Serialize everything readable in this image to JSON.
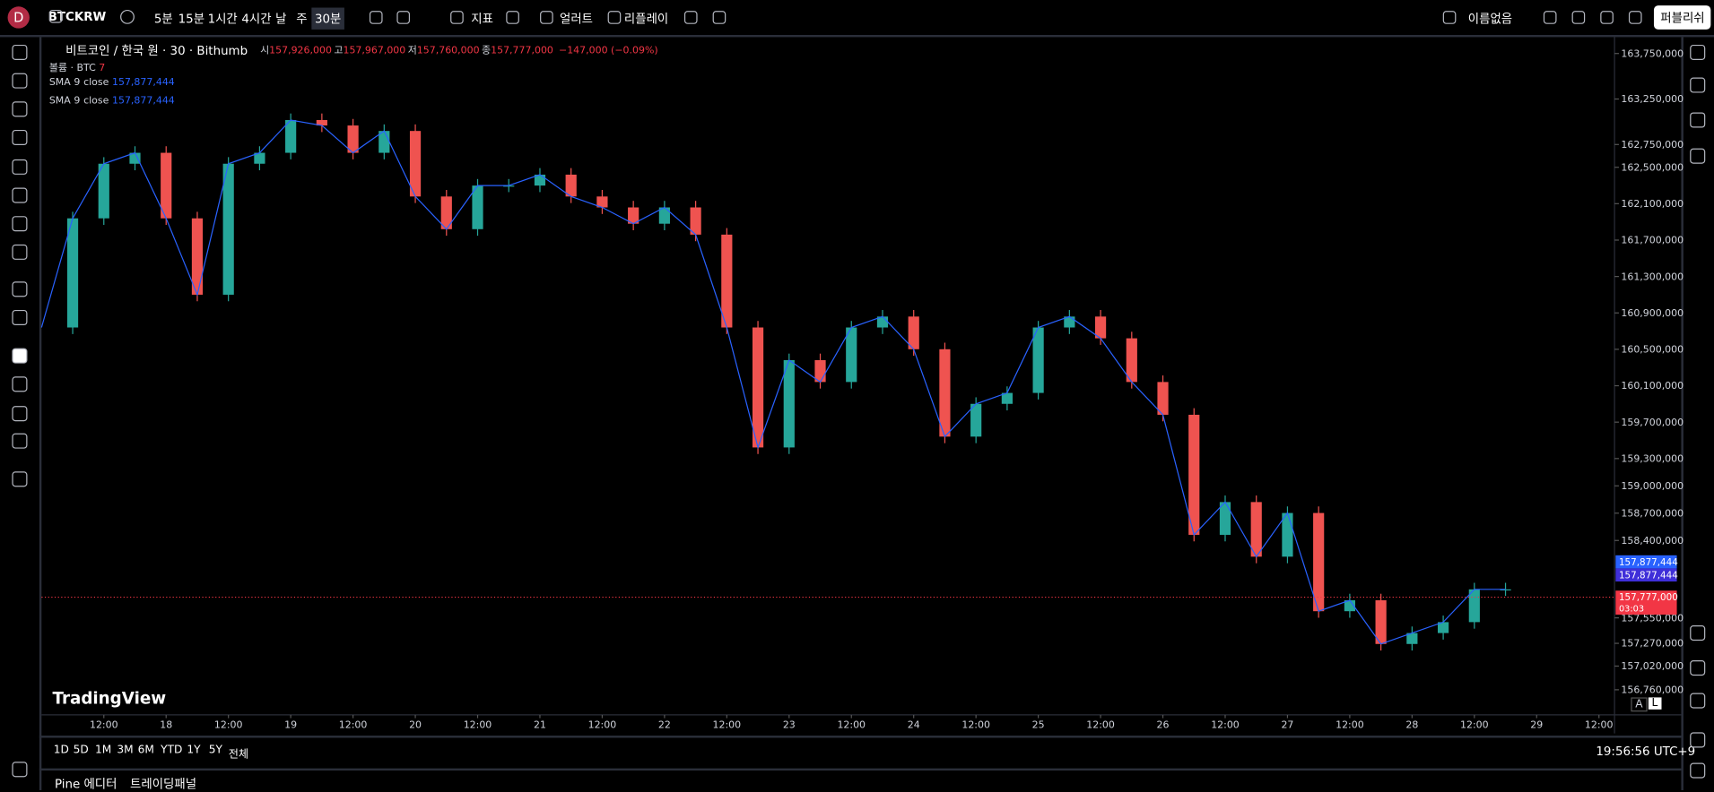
{
  "toolbar": {
    "avatar": "D",
    "symbol": "BTCKRW",
    "intervals": [
      "5분",
      "15분",
      "1시간",
      "4시간",
      "날",
      "주",
      "30분"
    ],
    "indicators": "지표",
    "alert": "얼러트",
    "replay": "리플레이",
    "layout_name": "이름없음",
    "publish": "퍼블리쉬"
  },
  "legend": {
    "title": "비트코인 / 한국 원 · 30 · Bithumb",
    "ohlc": [
      {
        "label": "시",
        "value": "157,926,000"
      },
      {
        "label": "고",
        "value": "157,967,000"
      },
      {
        "label": "저",
        "value": "157,760,000"
      },
      {
        "label": "종",
        "value": "157,777,000"
      }
    ],
    "change": "−147,000 (−0.09%)",
    "volume": "볼륨 · BTC",
    "volume_value": "7",
    "sma": [
      {
        "name": "SMA",
        "length": "9",
        "source": "close",
        "value": "157,877,444"
      },
      {
        "name": "SMA",
        "length": "9",
        "source": "close",
        "value": "157,877,444"
      }
    ]
  },
  "chart_data": {
    "type": "candlestick",
    "x": [
      0,
      6,
      12,
      18,
      24,
      30,
      36,
      42,
      48,
      54,
      60,
      66,
      72,
      78,
      84,
      90,
      96,
      102,
      108,
      114,
      120,
      126,
      132,
      138,
      144,
      150,
      156,
      162,
      168,
      174,
      180,
      186,
      192,
      198,
      204,
      210,
      216,
      222,
      228,
      234,
      240,
      246,
      252,
      258,
      264,
      270,
      276,
      282
    ],
    "values": [
      160740000,
      161939000,
      162539000,
      162659000,
      161939000,
      161100000,
      162539000,
      162659000,
      163019000,
      162959000,
      162659000,
      162899000,
      162179000,
      161820000,
      162299000,
      162299000,
      162419000,
      162179000,
      162059000,
      161880000,
      162059000,
      161760000,
      160740000,
      159422000,
      160381000,
      160141000,
      160740000,
      160860000,
      160501000,
      159541000,
      159901000,
      160021000,
      160740000,
      160860000,
      160621000,
      160141000,
      159781000,
      158462000,
      158822000,
      158222000,
      158702000,
      157623000,
      157743000,
      157263000,
      157383000,
      157503000,
      157863000,
      157863000
    ],
    "xlim": [
      0,
      303
    ],
    "ylim": [
      156484000,
      163918000
    ],
    "yticks": [
      {
        "value": 163750000,
        "label": "163,750,000"
      },
      {
        "value": 163250000,
        "label": "163,250,000"
      },
      {
        "value": 162750000,
        "label": "162,750,000"
      },
      {
        "value": 162500000,
        "label": "162,500,000"
      },
      {
        "value": 162100000,
        "label": "162,100,000"
      },
      {
        "value": 161700000,
        "label": "161,700,000"
      },
      {
        "value": 161300000,
        "label": "161,300,000"
      },
      {
        "value": 160900000,
        "label": "160,900,000"
      },
      {
        "value": 160500000,
        "label": "160,500,000"
      },
      {
        "value": 160100000,
        "label": "160,100,000"
      },
      {
        "value": 159700000,
        "label": "159,700,000"
      },
      {
        "value": 159300000,
        "label": "159,300,000"
      },
      {
        "value": 159000000,
        "label": "159,000,000"
      },
      {
        "value": 158700000,
        "label": "158,700,000"
      },
      {
        "value": 158400000,
        "label": "158,400,000"
      },
      {
        "value": 157550000,
        "label": "157,550,000"
      },
      {
        "value": 157270000,
        "label": "157,270,000"
      },
      {
        "value": 157020000,
        "label": "157,020,000"
      },
      {
        "value": 156760000,
        "label": "156,760,000"
      }
    ],
    "xticks": [
      {
        "value": 12,
        "label": "12:00"
      },
      {
        "value": 24,
        "label": "18"
      },
      {
        "value": 36,
        "label": "12:00"
      },
      {
        "value": 48,
        "label": "19"
      },
      {
        "value": 60,
        "label": "12:00"
      },
      {
        "value": 72,
        "label": "20"
      },
      {
        "value": 84,
        "label": "12:00"
      },
      {
        "value": 96,
        "label": "21"
      },
      {
        "value": 108,
        "label": "12:00"
      },
      {
        "value": 120,
        "label": "22"
      },
      {
        "value": 132,
        "label": "12:00"
      },
      {
        "value": 144,
        "label": "23"
      },
      {
        "value": 156,
        "label": "12:00"
      },
      {
        "value": 168,
        "label": "24"
      },
      {
        "value": 180,
        "label": "12:00"
      },
      {
        "value": 192,
        "label": "25"
      },
      {
        "value": 204,
        "label": "12:00"
      },
      {
        "value": 216,
        "label": "26"
      },
      {
        "value": 228,
        "label": "12:00"
      },
      {
        "value": 240,
        "label": "27"
      },
      {
        "value": 252,
        "label": "12:00"
      },
      {
        "value": 264,
        "label": "28"
      },
      {
        "value": 276,
        "label": "12:00"
      },
      {
        "value": 288,
        "label": "29"
      },
      {
        "value": 300,
        "label": "12:00"
      }
    ],
    "up_color": "#26a69a",
    "down_color": "#ef5350",
    "price_labels": [
      {
        "value": 157877444,
        "label": "157,877,444",
        "color": "#2962ff"
      },
      {
        "value": 157877444,
        "label": "157,877,444",
        "color": "#3f2fd9"
      },
      {
        "value": 157777000,
        "label": "157,777,000",
        "color": "#f23645",
        "countdown": "03:03"
      }
    ]
  },
  "watermark": "TradingView",
  "axis_buttons": [
    "A",
    "L"
  ],
  "ranges": [
    "1D",
    "5D",
    "1M",
    "3M",
    "6M",
    "YTD",
    "1Y",
    "5Y",
    "전체"
  ],
  "clock": "19:56:56 UTC+9",
  "panels": [
    "Pine 에디터",
    "트레이딩패널"
  ]
}
